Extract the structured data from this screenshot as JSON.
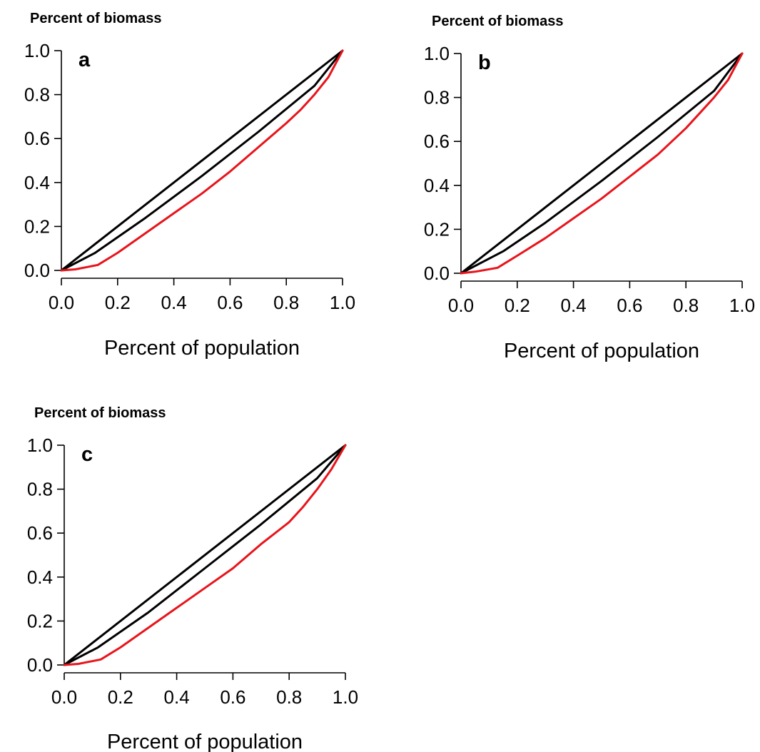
{
  "colors": {
    "equality_line": "#000000",
    "black_curve": "#000000",
    "red_curve": "#e8141b"
  },
  "chart_data": [
    {
      "type": "line",
      "panel": "a",
      "ylabel": "Percent of biomass",
      "xlabel": "Percent of population",
      "xlim": [
        0,
        1
      ],
      "ylim": [
        0,
        1
      ],
      "xticks": [
        "0.0",
        "0.2",
        "0.4",
        "0.6",
        "0.8",
        "1.0"
      ],
      "yticks": [
        "0.0",
        "0.2",
        "0.4",
        "0.6",
        "0.8",
        "1.0"
      ],
      "grid": false,
      "series": [
        {
          "color": "#000000",
          "x": [
            0,
            1
          ],
          "y": [
            0,
            1
          ]
        },
        {
          "color": "#000000",
          "x": [
            0,
            0.12,
            0.3,
            0.5,
            0.7,
            0.9,
            1.0
          ],
          "y": [
            0,
            0.08,
            0.24,
            0.43,
            0.63,
            0.84,
            1.0
          ]
        },
        {
          "color": "#e8141b",
          "x": [
            0,
            0.05,
            0.13,
            0.2,
            0.3,
            0.4,
            0.5,
            0.6,
            0.7,
            0.8,
            0.85,
            0.9,
            0.95,
            1.0
          ],
          "y": [
            0,
            0.005,
            0.025,
            0.08,
            0.17,
            0.26,
            0.35,
            0.45,
            0.56,
            0.67,
            0.73,
            0.8,
            0.88,
            1.0
          ]
        }
      ]
    },
    {
      "type": "line",
      "panel": "b",
      "ylabel": "Percent of biomass",
      "xlabel": "Percent of population",
      "xlim": [
        0,
        1
      ],
      "ylim": [
        0,
        1
      ],
      "xticks": [
        "0.0",
        "0.2",
        "0.4",
        "0.6",
        "0.8",
        "1.0"
      ],
      "yticks": [
        "0.0",
        "0.2",
        "0.4",
        "0.6",
        "0.8",
        "1.0"
      ],
      "grid": false,
      "series": [
        {
          "color": "#000000",
          "x": [
            0,
            1
          ],
          "y": [
            0,
            1
          ]
        },
        {
          "color": "#000000",
          "x": [
            0,
            0.15,
            0.3,
            0.5,
            0.7,
            0.9,
            1.0
          ],
          "y": [
            0,
            0.1,
            0.23,
            0.42,
            0.62,
            0.83,
            1.0
          ]
        },
        {
          "color": "#e8141b",
          "x": [
            0,
            0.05,
            0.13,
            0.2,
            0.3,
            0.4,
            0.5,
            0.6,
            0.7,
            0.8,
            0.85,
            0.9,
            0.95,
            1.0
          ],
          "y": [
            0,
            0.007,
            0.025,
            0.08,
            0.16,
            0.25,
            0.34,
            0.44,
            0.54,
            0.66,
            0.73,
            0.8,
            0.88,
            1.0
          ]
        }
      ]
    },
    {
      "type": "line",
      "panel": "c",
      "ylabel": "Percent of biomass",
      "xlabel": "Percent of population",
      "xlim": [
        0,
        1
      ],
      "ylim": [
        0,
        1
      ],
      "xticks": [
        "0.0",
        "0.2",
        "0.4",
        "0.6",
        "0.8",
        "1.0"
      ],
      "yticks": [
        "0.0",
        "0.2",
        "0.4",
        "0.6",
        "0.8",
        "1.0"
      ],
      "grid": false,
      "series": [
        {
          "color": "#000000",
          "x": [
            0,
            1
          ],
          "y": [
            0,
            1
          ]
        },
        {
          "color": "#000000",
          "x": [
            0,
            0.12,
            0.3,
            0.5,
            0.7,
            0.9,
            1.0
          ],
          "y": [
            0,
            0.08,
            0.24,
            0.44,
            0.64,
            0.85,
            1.0
          ]
        },
        {
          "color": "#e8141b",
          "x": [
            0,
            0.05,
            0.13,
            0.2,
            0.3,
            0.4,
            0.5,
            0.6,
            0.7,
            0.8,
            0.85,
            0.9,
            0.95,
            1.0
          ],
          "y": [
            0,
            0.005,
            0.025,
            0.08,
            0.17,
            0.26,
            0.35,
            0.44,
            0.55,
            0.65,
            0.72,
            0.8,
            0.89,
            1.0
          ]
        }
      ]
    }
  ]
}
